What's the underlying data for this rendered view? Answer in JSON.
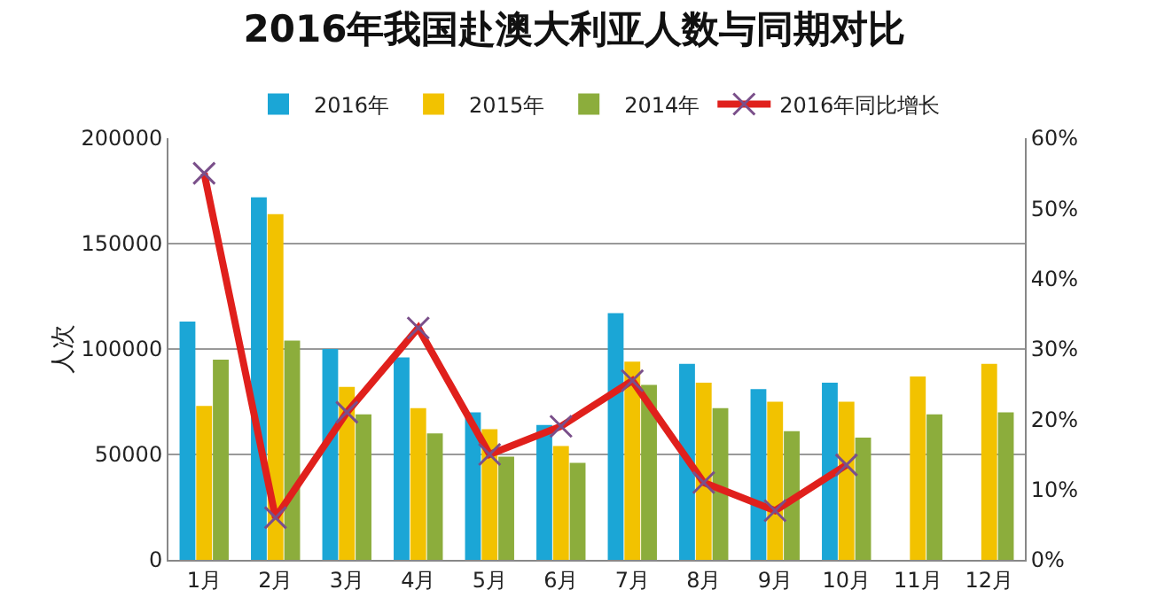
{
  "chart_data": {
    "type": "bar",
    "title": "2016年我国赴澳大利亚人数与同期对比",
    "ylabel": "人次",
    "categories": [
      "1月",
      "2月",
      "3月",
      "4月",
      "5月",
      "6月",
      "7月",
      "8月",
      "9月",
      "10月",
      "11月",
      "12月"
    ],
    "series": [
      {
        "name": "2016年",
        "color": "#1ba6d6",
        "values": [
          113000,
          172000,
          100000,
          96000,
          70000,
          64000,
          117000,
          93000,
          81000,
          84000,
          null,
          null
        ]
      },
      {
        "name": "2015年",
        "color": "#f2c200",
        "values": [
          73000,
          164000,
          82000,
          72000,
          62000,
          54000,
          94000,
          84000,
          75000,
          75000,
          87000,
          93000
        ]
      },
      {
        "name": "2014年",
        "color": "#8cad3c",
        "values": [
          95000,
          104000,
          69000,
          60000,
          49000,
          46000,
          83000,
          72000,
          61000,
          58000,
          69000,
          70000
        ]
      },
      {
        "name": "2016年同比增长",
        "type": "line",
        "axis": "y2",
        "color": "#e0201c",
        "marker": "cross",
        "values": [
          55,
          6,
          21,
          33,
          15,
          19,
          25.5,
          11,
          7,
          13.5,
          null,
          null
        ]
      }
    ],
    "ylim": [
      0,
      200000
    ],
    "yticks": [
      0,
      50000,
      100000,
      150000,
      200000
    ],
    "y2lim": [
      0,
      60
    ],
    "y2ticks": [
      {
        "value": 0,
        "label": "0%"
      },
      {
        "value": 10,
        "label": "10%"
      },
      {
        "value": 20,
        "label": "20%"
      },
      {
        "value": 30,
        "label": "30%"
      },
      {
        "value": 40,
        "label": "40%"
      },
      {
        "value": 50,
        "label": "50%"
      },
      {
        "value": 60,
        "label": "60%"
      }
    ],
    "grid": "y",
    "legend": "top"
  }
}
